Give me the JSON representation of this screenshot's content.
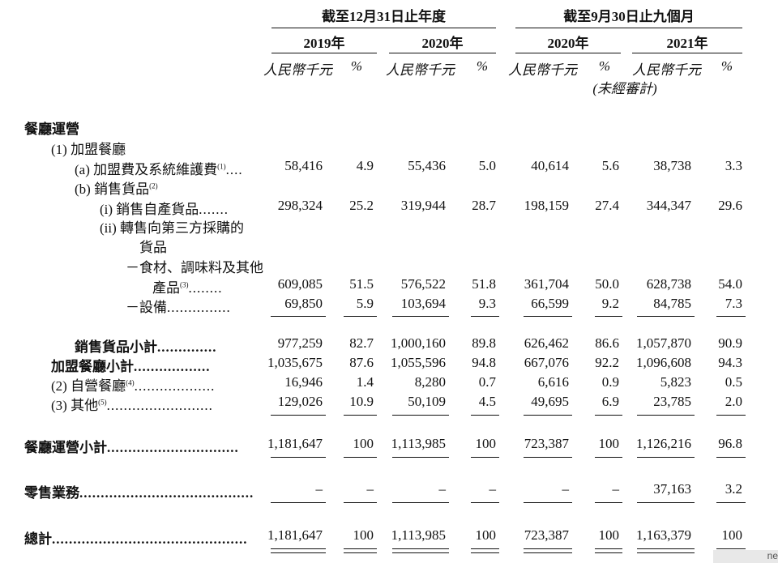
{
  "header": {
    "group1": "截至12月31日止年度",
    "group2": "截至9月30日止九個月",
    "years": [
      "2019年",
      "2020年",
      "2020年",
      "2021年"
    ],
    "unit_rmb": "人民幣千元",
    "unit_pct": "%",
    "unaudited": "(未經審計)"
  },
  "rows": [
    {
      "label": "餐廳運營",
      "values": []
    },
    {
      "label": "(1)  加盟餐廳",
      "values": []
    },
    {
      "label": "(a)  加盟費及系統維護費",
      "sup": "(1)",
      "dots": "....",
      "values": [
        "58,416",
        "4.9",
        "55,436",
        "5.0",
        "40,614",
        "5.6",
        "38,738",
        "3.3"
      ]
    },
    {
      "label": "(b)  銷售貨品",
      "sup": "(2)",
      "values": []
    },
    {
      "label": "(i)   銷售自產貨品",
      "dots": ".......",
      "values": [
        "298,324",
        "25.2",
        "319,944",
        "28.7",
        "198,159",
        "27.4",
        "344,347",
        "29.6"
      ]
    },
    {
      "label": "(ii)  轉售向第三方採購的",
      "values": []
    },
    {
      "label": "貨品",
      "values": []
    },
    {
      "label": "－食材、調味料及其他",
      "values": []
    },
    {
      "label": "產品",
      "sup": "(3)",
      "dots": "........",
      "values": [
        "609,085",
        "51.5",
        "576,522",
        "51.8",
        "361,704",
        "50.0",
        "628,738",
        "54.0"
      ]
    },
    {
      "label": "－設備",
      "dots": "...............",
      "values": [
        "69,850",
        "5.9",
        "103,694",
        "9.3",
        "66,599",
        "9.2",
        "84,785",
        "7.3"
      ]
    },
    {
      "label": "銷售貨品小計",
      "dots": "..............",
      "values": [
        "977,259",
        "82.7",
        "1,000,160",
        "89.8",
        "626,462",
        "86.6",
        "1,057,870",
        "90.9"
      ]
    },
    {
      "label": "加盟餐廳小計",
      "dots": "..................",
      "values": [
        "1,035,675",
        "87.6",
        "1,055,596",
        "94.8",
        "667,076",
        "92.2",
        "1,096,608",
        "94.3"
      ]
    },
    {
      "label": "(2)  自營餐廳",
      "sup": "(4)",
      "dots": "...................",
      "values": [
        "16,946",
        "1.4",
        "8,280",
        "0.7",
        "6,616",
        "0.9",
        "5,823",
        "0.5"
      ]
    },
    {
      "label": "(3)  其他",
      "sup": "(5)",
      "dots": ".........................",
      "values": [
        "129,026",
        "10.9",
        "50,109",
        "4.5",
        "49,695",
        "6.9",
        "23,785",
        "2.0"
      ]
    },
    {
      "label": "餐廳運營小計",
      "dots": "...............................",
      "values": [
        "1,181,647",
        "100",
        "1,113,985",
        "100",
        "723,387",
        "100",
        "1,126,216",
        "96.8"
      ]
    },
    {
      "label": "零售業務",
      "dots": ".........................................",
      "values": [
        "–",
        "–",
        "–",
        "–",
        "–",
        "–",
        "37,163",
        "3.2"
      ]
    },
    {
      "label": "總計",
      "dots": "..............................................",
      "values": [
        "1,181,647",
        "100",
        "1,113,985",
        "100",
        "723,387",
        "100",
        "1,163,379",
        "100"
      ]
    }
  ],
  "watermark": "ne"
}
